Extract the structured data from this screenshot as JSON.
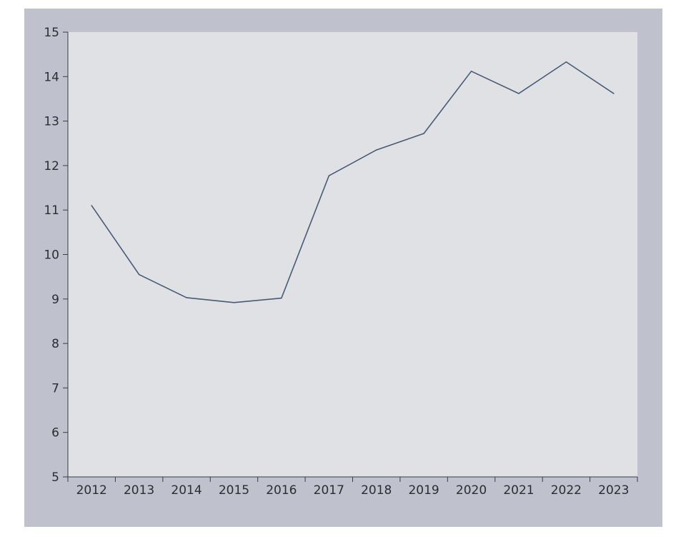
{
  "chart_data": {
    "type": "line",
    "title": "",
    "xlabel": "",
    "ylabel": "",
    "categories": [
      "2012",
      "2013",
      "2014",
      "2015",
      "2016",
      "2017",
      "2018",
      "2019",
      "2020",
      "2021",
      "2022",
      "2023"
    ],
    "series": [
      {
        "values": [
          11.1,
          9.55,
          9.03,
          8.92,
          9.02,
          11.77,
          12.35,
          12.72,
          14.12,
          13.62,
          14.33,
          13.62
        ]
      }
    ],
    "ylim": [
      5,
      15
    ],
    "yticks": [
      5,
      6,
      7,
      8,
      9,
      10,
      11,
      12,
      13,
      14,
      15
    ],
    "grid": false,
    "legend": "none",
    "colors": {
      "frame": "#bfc1cc",
      "plot_bg": "#dfe1e5",
      "line": "#4a5a72",
      "axis": "#3a3d44",
      "text": "#2a2d33"
    }
  }
}
